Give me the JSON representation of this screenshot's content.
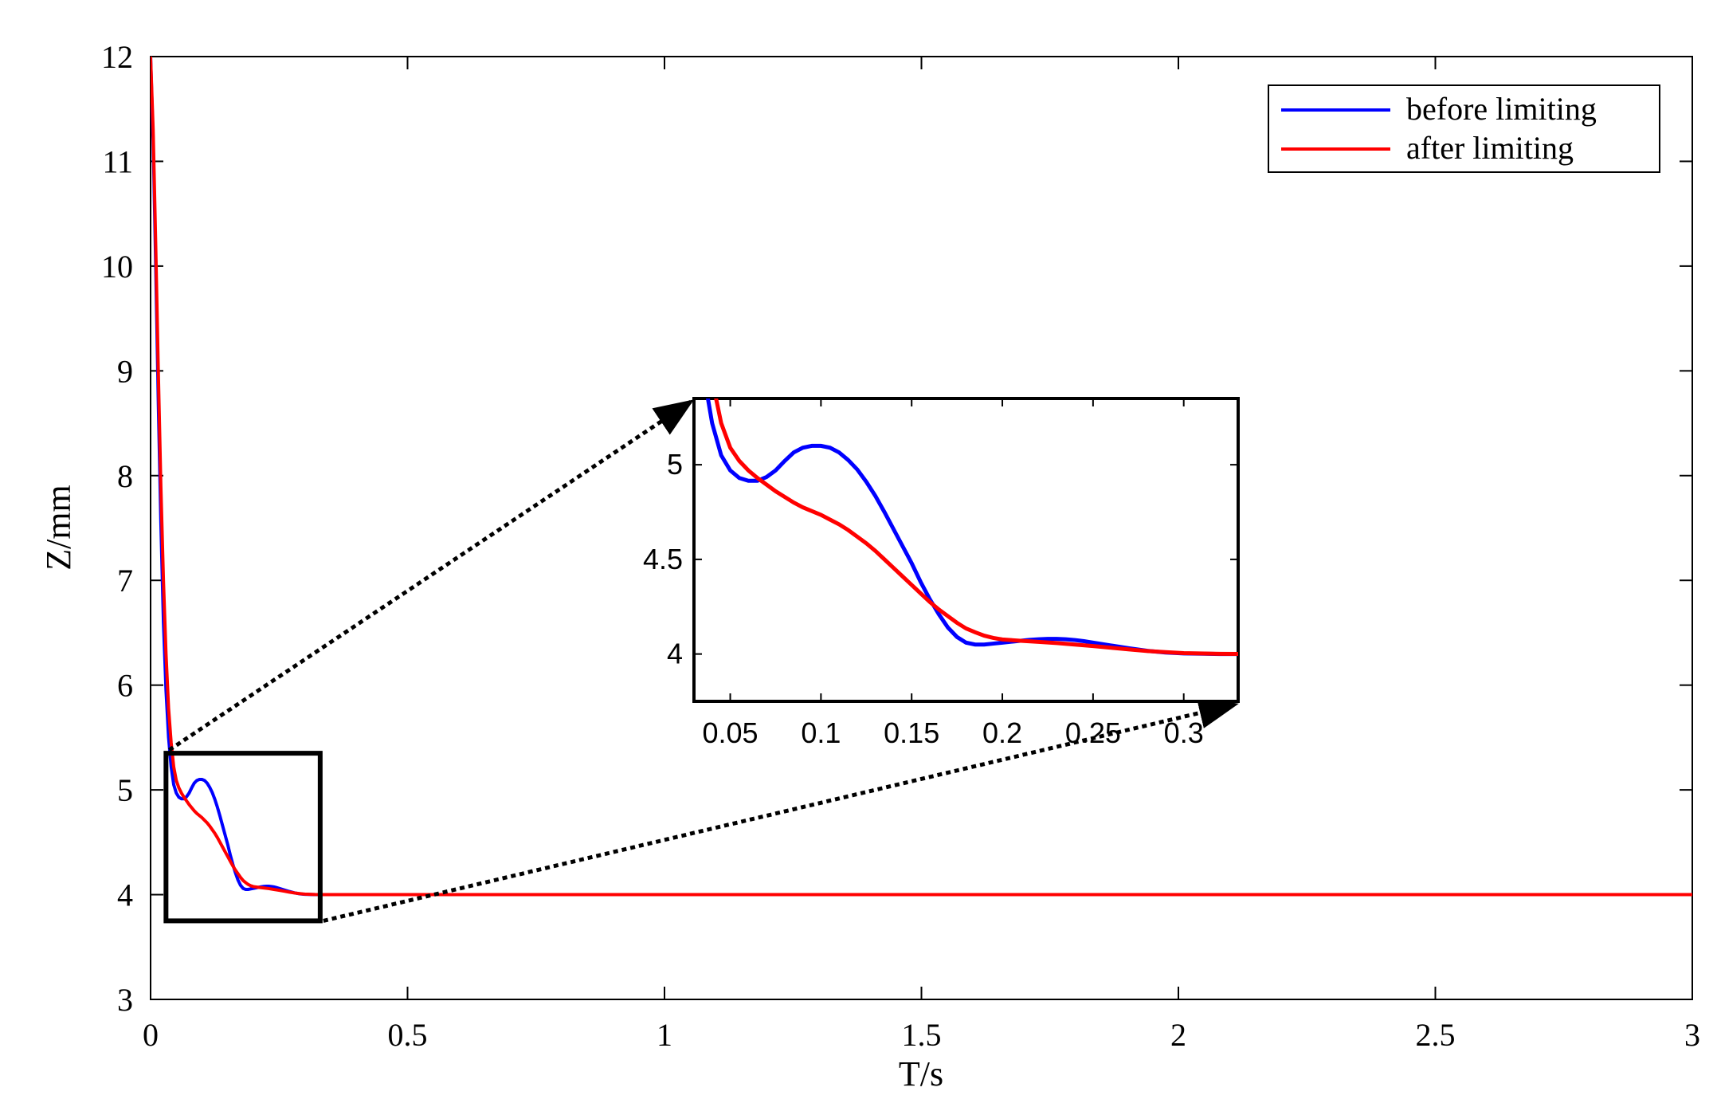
{
  "chart_data": {
    "type": "line",
    "xlabel": "T/s",
    "ylabel": "Z/mm",
    "xlim": [
      0,
      3
    ],
    "ylim": [
      3,
      12
    ],
    "xticks": [
      0,
      0.5,
      1,
      1.5,
      2,
      2.5,
      3
    ],
    "xtick_labels": [
      "0",
      "0.5",
      "1",
      "1.5",
      "2",
      "2.5",
      "3"
    ],
    "yticks": [
      3,
      4,
      5,
      6,
      7,
      8,
      9,
      10,
      11,
      12
    ],
    "ytick_labels": [
      "3",
      "4",
      "5",
      "6",
      "7",
      "8",
      "9",
      "10",
      "11",
      "12"
    ],
    "grid": false,
    "legend_position": "top-right",
    "series": [
      {
        "name": "before limiting",
        "color": "#0000ff",
        "x": [
          0,
          0.005,
          0.01,
          0.015,
          0.02,
          0.025,
          0.03,
          0.035,
          0.04,
          0.045,
          0.05,
          0.055,
          0.06,
          0.065,
          0.07,
          0.075,
          0.08,
          0.085,
          0.09,
          0.095,
          0.1,
          0.105,
          0.11,
          0.115,
          0.12,
          0.125,
          0.13,
          0.135,
          0.14,
          0.145,
          0.15,
          0.155,
          0.16,
          0.165,
          0.17,
          0.175,
          0.18,
          0.185,
          0.19,
          0.195,
          0.2,
          0.205,
          0.21,
          0.215,
          0.22,
          0.225,
          0.23,
          0.235,
          0.24,
          0.245,
          0.25,
          0.26,
          0.27,
          0.28,
          0.29,
          0.3,
          0.32,
          0.34,
          0.4,
          1.0,
          2.0,
          3.0
        ],
        "y": [
          12.0,
          11.2,
          10.0,
          8.7,
          7.55,
          6.6,
          5.95,
          5.5,
          5.22,
          5.05,
          4.97,
          4.93,
          4.915,
          4.915,
          4.935,
          4.97,
          5.02,
          5.065,
          5.09,
          5.1,
          5.1,
          5.09,
          5.065,
          5.025,
          4.975,
          4.91,
          4.835,
          4.75,
          4.66,
          4.57,
          4.48,
          4.38,
          4.29,
          4.21,
          4.14,
          4.09,
          4.06,
          4.05,
          4.05,
          4.055,
          4.06,
          4.065,
          4.07,
          4.075,
          4.078,
          4.08,
          4.08,
          4.078,
          4.074,
          4.068,
          4.06,
          4.045,
          4.03,
          4.017,
          4.008,
          4.003,
          4.0,
          4.0,
          4.0,
          4.0,
          4.0,
          4.0
        ]
      },
      {
        "name": "after limiting",
        "color": "#ff0000",
        "x": [
          0,
          0.005,
          0.01,
          0.015,
          0.02,
          0.025,
          0.03,
          0.035,
          0.04,
          0.045,
          0.05,
          0.055,
          0.06,
          0.065,
          0.07,
          0.075,
          0.08,
          0.085,
          0.09,
          0.095,
          0.1,
          0.105,
          0.11,
          0.115,
          0.12,
          0.125,
          0.13,
          0.135,
          0.14,
          0.145,
          0.15,
          0.155,
          0.16,
          0.165,
          0.17,
          0.175,
          0.18,
          0.185,
          0.19,
          0.195,
          0.2,
          0.21,
          0.22,
          0.23,
          0.24,
          0.25,
          0.26,
          0.27,
          0.28,
          0.29,
          0.3,
          0.32,
          0.34,
          0.4,
          1.0,
          2.0,
          3.0
        ],
        "y": [
          12.0,
          11.3,
          10.2,
          9.0,
          7.9,
          7.0,
          6.3,
          5.78,
          5.45,
          5.22,
          5.09,
          5.02,
          4.97,
          4.93,
          4.895,
          4.86,
          4.83,
          4.8,
          4.775,
          4.755,
          4.735,
          4.71,
          4.685,
          4.655,
          4.62,
          4.585,
          4.545,
          4.5,
          4.455,
          4.41,
          4.365,
          4.32,
          4.275,
          4.235,
          4.2,
          4.165,
          4.135,
          4.115,
          4.097,
          4.085,
          4.077,
          4.07,
          4.064,
          4.058,
          4.05,
          4.042,
          4.033,
          4.024,
          4.016,
          4.01,
          4.005,
          4.001,
          4.0,
          4.0,
          4.0,
          4.0,
          4.0
        ]
      }
    ],
    "inset": {
      "xlim": [
        0.03,
        0.33
      ],
      "ylim": [
        3.75,
        5.35
      ],
      "xticks": [
        0.05,
        0.1,
        0.15,
        0.2,
        0.25,
        0.3
      ],
      "xtick_labels": [
        "0.05",
        "0.1",
        "0.15",
        "0.2",
        "0.25",
        "0.3"
      ],
      "yticks": [
        4,
        4.5,
        5
      ],
      "ytick_labels": [
        "4",
        "4.5",
        "5"
      ],
      "zoom_region": {
        "x": [
          0.03,
          0.33
        ],
        "y": [
          3.75,
          5.35
        ]
      }
    }
  }
}
